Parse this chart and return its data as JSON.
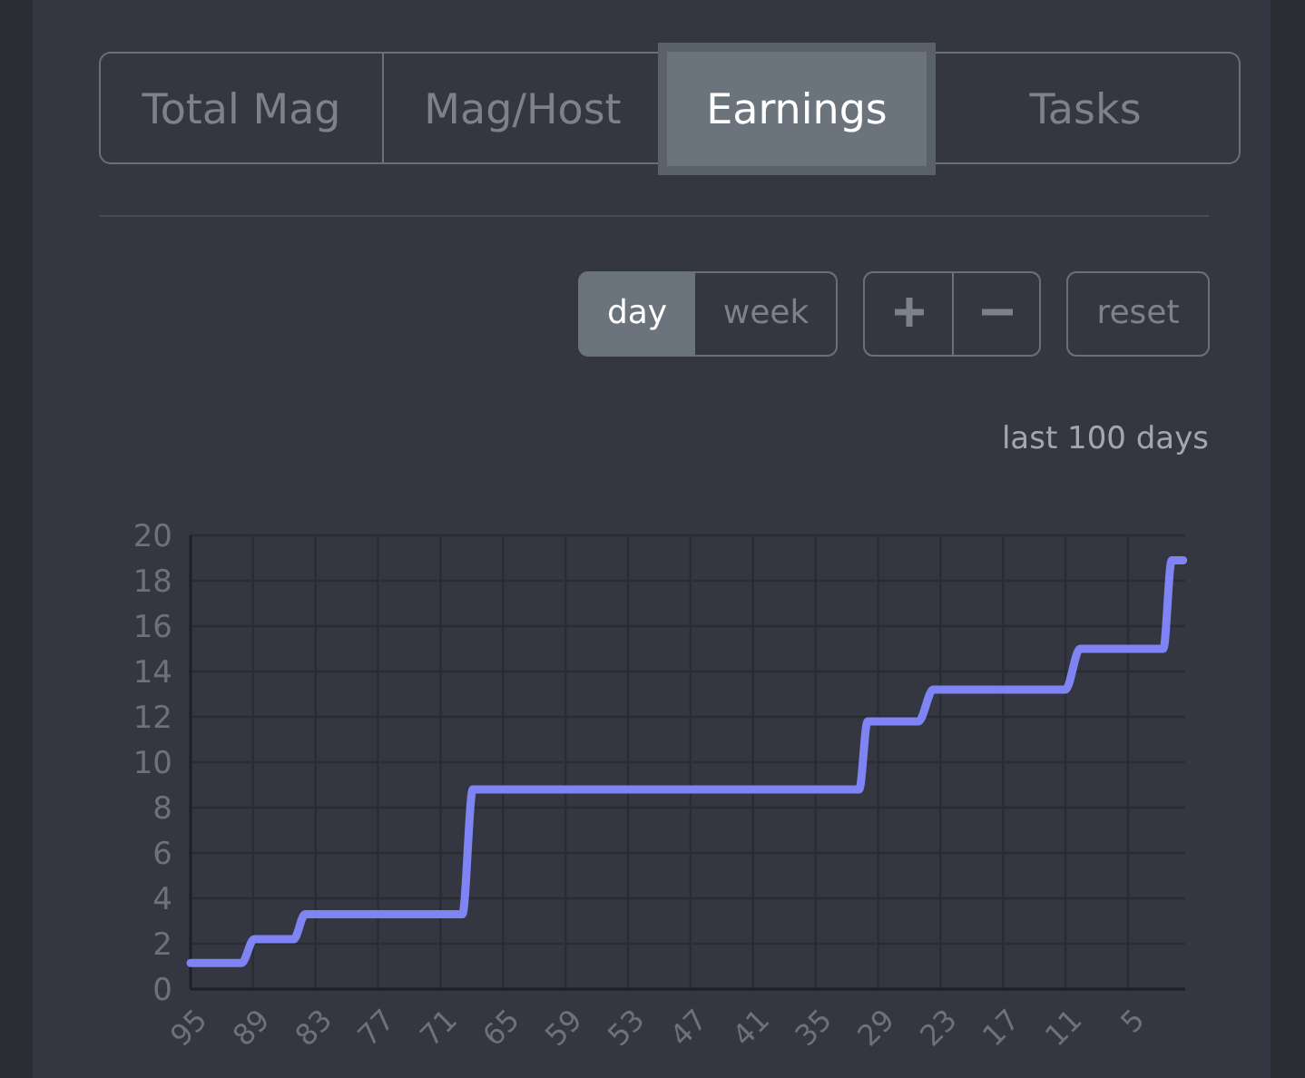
{
  "chart_data": {
    "type": "line",
    "subtitle": "last 100 days",
    "annotations": [
      "Total Mag",
      "Mag/Host",
      "Earnings",
      "Tasks",
      "day",
      "week",
      "reset"
    ],
    "x": [
      95,
      90.1,
      88.9,
      85.1,
      84,
      68.9,
      67.9,
      30.8,
      30,
      25.1,
      23.7,
      11,
      9.6,
      1.6,
      0.8,
      -0.3
    ],
    "series": [
      {
        "color": "#7f84f5",
        "values": [
          1.15,
          1.15,
          2.2,
          2.2,
          3.3,
          3.3,
          8.8,
          8.8,
          11.8,
          11.8,
          13.2,
          13.2,
          15,
          15,
          18.9,
          18.9
        ]
      }
    ],
    "xlim": [
      95,
      -0.5
    ],
    "xticks": [
      95,
      89,
      83,
      77,
      71,
      65,
      59,
      53,
      47,
      41,
      35,
      29,
      23,
      17,
      11,
      5
    ],
    "ylim": [
      0,
      20
    ],
    "yticks": [
      0,
      2,
      4,
      6,
      8,
      10,
      12,
      14,
      16,
      18,
      20
    ],
    "grid": true,
    "marker": "none",
    "line_style": "solid"
  }
}
